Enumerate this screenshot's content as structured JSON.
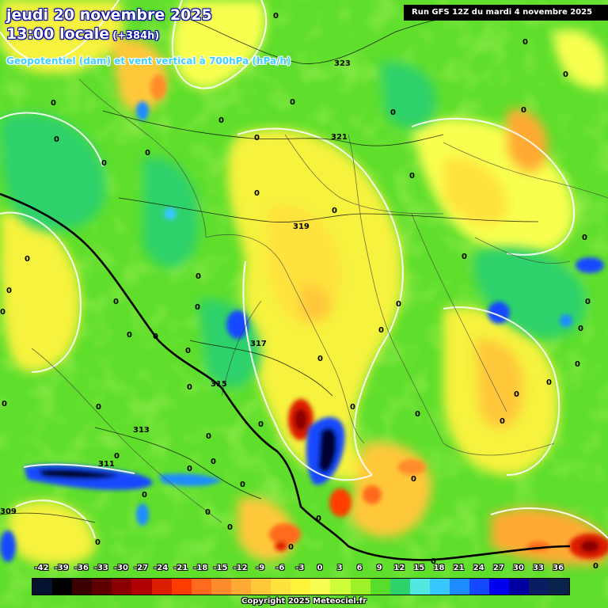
{
  "header": {
    "date_line": "jeudi 20 novembre 2025",
    "time_line": "13:00 locale",
    "lead_time": "(+384h)",
    "subtitle": "Geopotentiel (dam) et vent vertical à 700hPa (hPa/h)",
    "run_info": "Run GFS 12Z du mardi 4 novembre 2025"
  },
  "legend": {
    "labels": [
      "-42",
      "-39",
      "-36",
      "-33",
      "-30",
      "-27",
      "-24",
      "-21",
      "-18",
      "-15",
      "-12",
      "-9",
      "-6",
      "-3",
      "0",
      "3",
      "6",
      "9",
      "12",
      "15",
      "18",
      "21",
      "24",
      "27",
      "30",
      "33",
      "36"
    ],
    "colors": [
      "#04122f",
      "#000000",
      "#3a0000",
      "#5e0000",
      "#8a0000",
      "#b00000",
      "#dc1e00",
      "#ff3c00",
      "#ff6a1c",
      "#ff8c2a",
      "#ffaa32",
      "#ffc83a",
      "#ffe23c",
      "#fff43c",
      "#f8ff50",
      "#cfff3a",
      "#9ef028",
      "#56de2a",
      "#2ed26a",
      "#52e8e0",
      "#38c8ff",
      "#1c8cff",
      "#1448ff",
      "#0000f0",
      "#0000a0",
      "#0a1c64",
      "#08244a"
    ]
  },
  "contours": {
    "labels": [
      "323",
      "321",
      "319",
      "317",
      "315",
      "313",
      "311",
      "309"
    ]
  },
  "vertical_velocity_labels": [
    "0"
  ],
  "copyright": "Copyright 2025 Meteociel.fr"
}
